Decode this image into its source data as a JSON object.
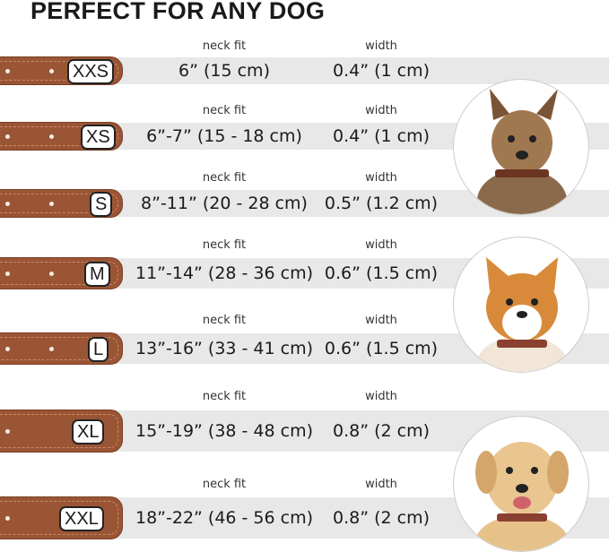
{
  "title": "PERFECT FOR ANY DOG",
  "neck_label": "neck fit",
  "width_label": "width",
  "sizes": [
    {
      "size": "XXS",
      "neck": "6” (15 cm)",
      "width": "0.4” (1 cm)"
    },
    {
      "size": "XS",
      "neck": "6”-7” (15 - 18 cm)",
      "width": "0.4” (1 cm)"
    },
    {
      "size": "S",
      "neck": "8”-11” (20 - 28 cm)",
      "width": "0.5” (1.2 cm)"
    },
    {
      "size": "M",
      "neck": "11”-14” (28 - 36 cm)",
      "width": "0.6” (1.5 cm)"
    },
    {
      "size": "L",
      "neck": "13”-16” (33 - 41 cm)",
      "width": "0.6” (1.5 cm)"
    },
    {
      "size": "XL",
      "neck": "15”-19” (38 - 48 cm)",
      "width": "0.8” (2 cm)"
    },
    {
      "size": "XXL",
      "neck": "18”-22” (46 - 56 cm)",
      "width": "0.8” (2 cm)"
    }
  ],
  "colors": {
    "collar": "#9a5535",
    "band": "#e8e8e8"
  }
}
